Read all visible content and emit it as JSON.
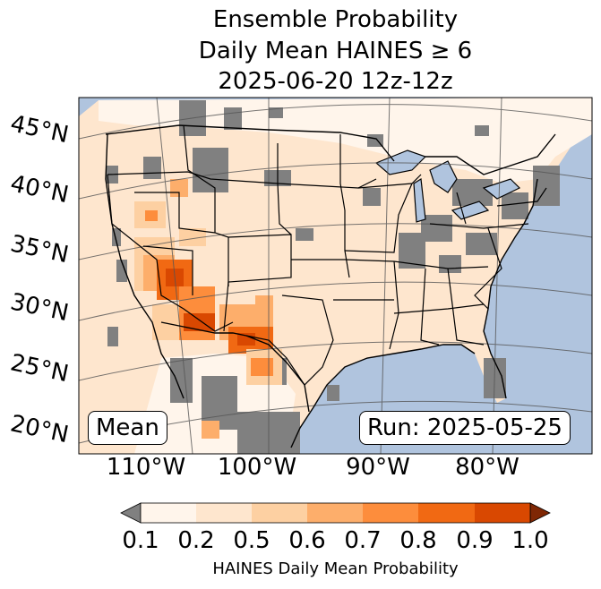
{
  "title": {
    "line1": "Ensemble Probability",
    "line2": "Daily Mean HAINES ≥ 6",
    "line3": "2025-06-20 12z-12z"
  },
  "map": {
    "latitude_labels": [
      "45°N",
      "40°N",
      "35°N",
      "30°N",
      "25°N",
      "20°N"
    ],
    "longitude_labels": [
      "110°W",
      "100°W",
      "90°W",
      "80°W"
    ],
    "stat_label": "Mean",
    "run_label": "Run: 2025-05-25",
    "colors": {
      "ocean": "#b0c4de",
      "land_low": "#fff5eb",
      "missing": "#808080",
      "borders": "#000000",
      "lakes": "#b0c4de"
    }
  },
  "colorbar": {
    "ticks": [
      "0.1",
      "0.2",
      "0.5",
      "0.6",
      "0.7",
      "0.8",
      "0.9",
      "1.0"
    ],
    "colors": [
      "#fff5eb",
      "#fee6ce",
      "#fdd0a2",
      "#fdae6b",
      "#fd8d3c",
      "#f16913",
      "#d94801",
      "#a63603"
    ],
    "under_color": "#808080",
    "over_color": "#7f2704",
    "label": "HAINES Daily Mean Probability"
  }
}
